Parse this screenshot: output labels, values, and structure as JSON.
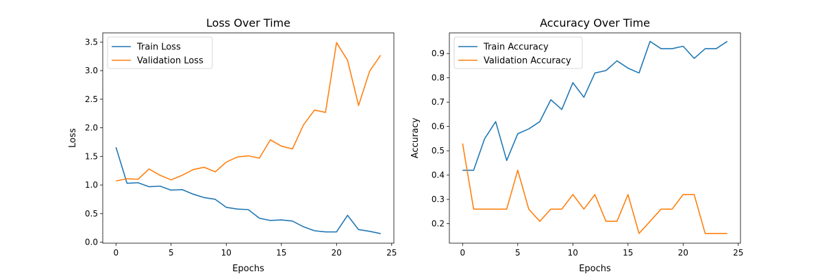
{
  "chart_data": [
    {
      "type": "line",
      "title": "Loss Over Time",
      "xlabel": "Epochs",
      "ylabel": "Loss",
      "xlim": [
        -1.2,
        25.2
      ],
      "ylim": [
        -0.017,
        3.66
      ],
      "xticks": [
        0,
        5,
        10,
        15,
        20,
        25
      ],
      "yticks": [
        0.0,
        0.5,
        1.0,
        1.5,
        2.0,
        2.5,
        3.0,
        3.5
      ],
      "ytick_labels": [
        "0.0",
        "0.5",
        "1.0",
        "1.5",
        "2.0",
        "2.5",
        "3.0",
        "3.5"
      ],
      "legend_position": "upper-left",
      "x": [
        0,
        1,
        2,
        3,
        4,
        5,
        6,
        7,
        8,
        9,
        10,
        11,
        12,
        13,
        14,
        15,
        16,
        17,
        18,
        19,
        20,
        21,
        22,
        23,
        24
      ],
      "series": [
        {
          "name": "Train Loss",
          "color": "#1f77b4",
          "values": [
            1.66,
            1.03,
            1.04,
            0.97,
            0.98,
            0.91,
            0.92,
            0.84,
            0.78,
            0.75,
            0.61,
            0.58,
            0.57,
            0.42,
            0.38,
            0.39,
            0.37,
            0.27,
            0.2,
            0.18,
            0.18,
            0.47,
            0.22,
            0.19,
            0.15
          ]
        },
        {
          "name": "Validation Loss",
          "color": "#ff7f0e",
          "values": [
            1.07,
            1.11,
            1.1,
            1.28,
            1.17,
            1.09,
            1.17,
            1.27,
            1.31,
            1.23,
            1.4,
            1.49,
            1.51,
            1.47,
            1.79,
            1.68,
            1.63,
            2.05,
            2.31,
            2.27,
            3.49,
            3.18,
            2.39,
            2.99,
            3.27
          ]
        }
      ]
    },
    {
      "type": "line",
      "title": "Accuracy Over Time",
      "xlabel": "Epochs",
      "ylabel": "Accuracy",
      "xlim": [
        -1.2,
        25.2
      ],
      "ylim": [
        0.12,
        0.985
      ],
      "xticks": [
        0,
        5,
        10,
        15,
        20,
        25
      ],
      "yticks": [
        0.2,
        0.3,
        0.4,
        0.5,
        0.6,
        0.7,
        0.8,
        0.9
      ],
      "ytick_labels": [
        "0.2",
        "0.3",
        "0.4",
        "0.5",
        "0.6",
        "0.7",
        "0.8",
        "0.9"
      ],
      "legend_position": "upper-left",
      "x": [
        0,
        1,
        2,
        3,
        4,
        5,
        6,
        7,
        8,
        9,
        10,
        11,
        12,
        13,
        14,
        15,
        16,
        17,
        18,
        19,
        20,
        21,
        22,
        23,
        24
      ],
      "series": [
        {
          "name": "Train Accuracy",
          "color": "#1f77b4",
          "values": [
            0.42,
            0.42,
            0.55,
            0.62,
            0.46,
            0.57,
            0.59,
            0.62,
            0.71,
            0.67,
            0.78,
            0.72,
            0.82,
            0.83,
            0.87,
            0.84,
            0.82,
            0.95,
            0.92,
            0.92,
            0.93,
            0.88,
            0.92,
            0.92,
            0.95
          ]
        },
        {
          "name": "Validation Accuracy",
          "color": "#ff7f0e",
          "values": [
            0.53,
            0.26,
            0.26,
            0.26,
            0.26,
            0.42,
            0.26,
            0.21,
            0.26,
            0.26,
            0.32,
            0.26,
            0.32,
            0.21,
            0.21,
            0.32,
            0.16,
            0.21,
            0.26,
            0.26,
            0.32,
            0.32,
            0.16,
            0.16,
            0.16
          ]
        }
      ]
    }
  ]
}
